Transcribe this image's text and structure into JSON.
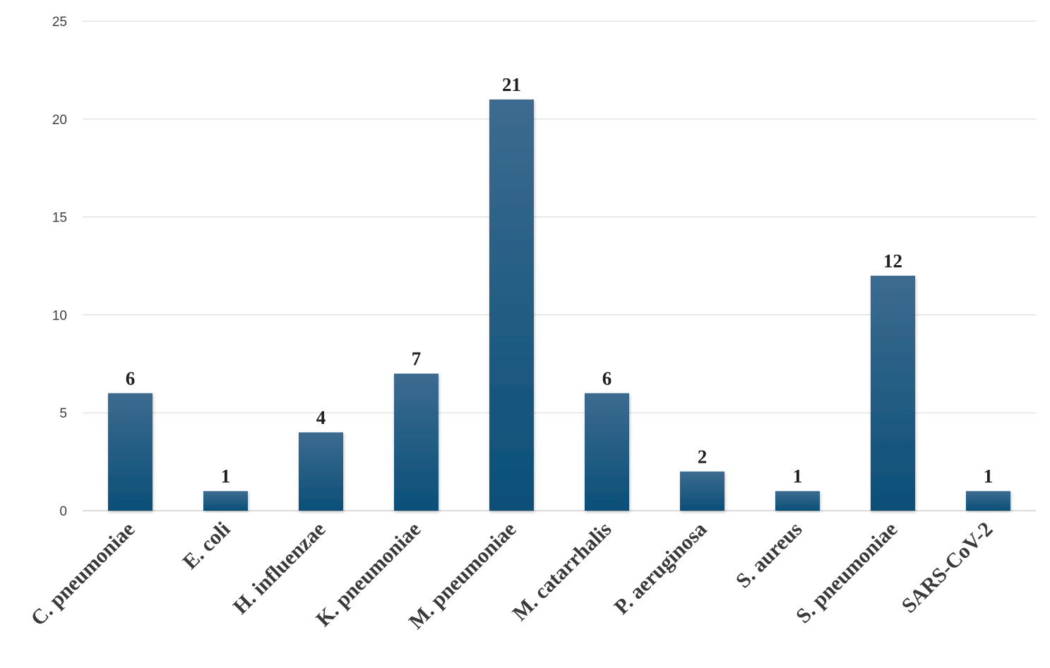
{
  "chart_data": {
    "type": "bar",
    "categories": [
      "C. pneumoniae",
      "E. coli",
      "H. influenzae",
      "K. pneumoniae",
      "M. pneumoniae",
      "M. catarrhalis",
      "P. aeruginosa",
      "S. aureus",
      "S. pneumoniae",
      "SARS-CoV-2"
    ],
    "values": [
      6,
      1,
      4,
      7,
      21,
      6,
      2,
      1,
      12,
      1
    ],
    "data_labels": [
      "6",
      "1",
      "4",
      "7",
      "21",
      "6",
      "2",
      "1",
      "12",
      "1"
    ],
    "title": "",
    "xlabel": "",
    "ylabel": "",
    "ylim": [
      0,
      25
    ],
    "yticks": [
      0,
      5,
      10,
      15,
      20,
      25
    ],
    "ytick_labels": [
      "0",
      "5",
      "10",
      "15",
      "20",
      "25"
    ],
    "grid": true,
    "legend": "none",
    "bar_color_top": "#3d6b8f",
    "bar_color_bottom": "#0a4f78"
  }
}
